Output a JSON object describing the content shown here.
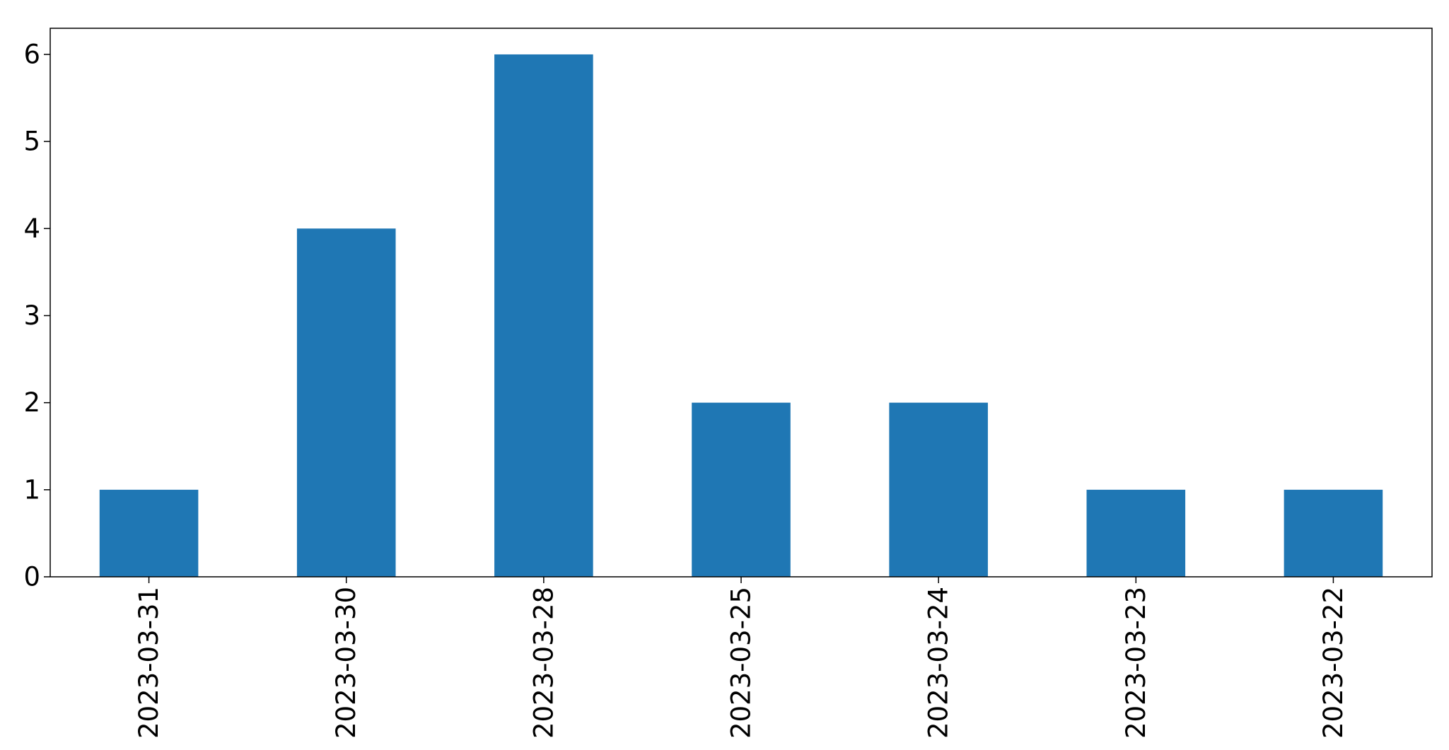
{
  "chart_data": {
    "type": "bar",
    "categories": [
      "2023-03-31",
      "2023-03-30",
      "2023-03-28",
      "2023-03-25",
      "2023-03-24",
      "2023-03-23",
      "2023-03-22"
    ],
    "values": [
      1,
      4,
      6,
      2,
      2,
      1,
      1
    ],
    "ylim": [
      0,
      6.3
    ],
    "yticks": [
      0,
      1,
      2,
      3,
      4,
      5,
      6
    ],
    "title": "",
    "xlabel": "",
    "ylabel": "",
    "grid": false,
    "legend": "none",
    "bar_color": "#1f77b4",
    "axis_color": "#000000"
  }
}
